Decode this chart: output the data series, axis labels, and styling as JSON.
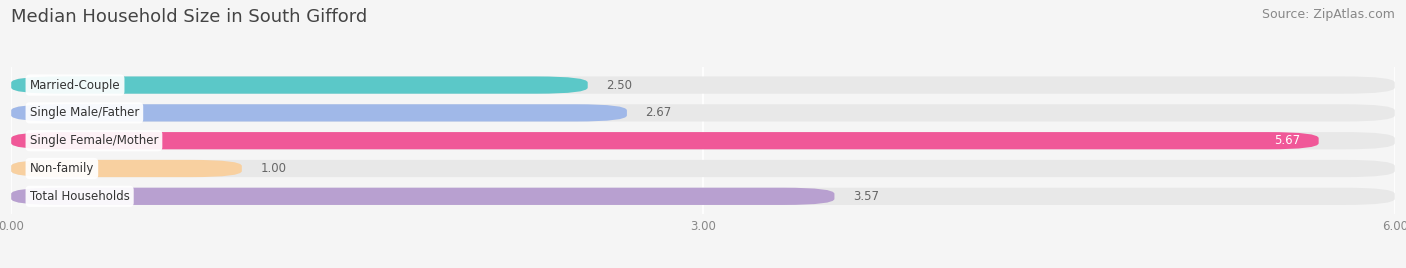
{
  "title": "Median Household Size in South Gifford",
  "source": "Source: ZipAtlas.com",
  "categories": [
    "Married-Couple",
    "Single Male/Father",
    "Single Female/Mother",
    "Non-family",
    "Total Households"
  ],
  "values": [
    2.5,
    2.67,
    5.67,
    1.0,
    3.57
  ],
  "bar_colors": [
    "#5bc8c8",
    "#a0b8e8",
    "#f05898",
    "#f8d0a0",
    "#b8a0d0"
  ],
  "bar_bg_color": "#e8e8e8",
  "xlim": [
    0,
    6.0
  ],
  "xticks": [
    0.0,
    3.0,
    6.0
  ],
  "xtick_labels": [
    "0.00",
    "3.00",
    "6.00"
  ],
  "value_label_color": "#666666",
  "title_fontsize": 13,
  "source_fontsize": 9,
  "label_fontsize": 8.5,
  "value_fontsize": 8.5,
  "bar_height": 0.62,
  "bg_color": "#f5f5f5",
  "gap_color": "white"
}
